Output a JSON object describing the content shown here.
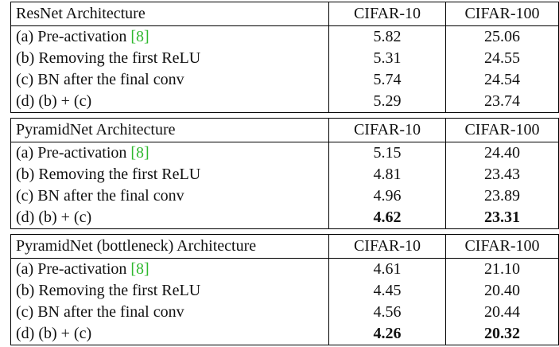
{
  "tables": [
    {
      "header": {
        "architecture": "ResNet Architecture",
        "cifar10": "CIFAR-10",
        "cifar100": "CIFAR-100"
      },
      "rows": [
        {
          "pre": "(a) Pre-activation ",
          "open": "[",
          "cite": "8",
          "close": "]",
          "cifar10": "5.82",
          "cifar100": "25.06"
        },
        {
          "label": "(b) Removing the first ReLU",
          "cifar10": "5.31",
          "cifar100": "24.55"
        },
        {
          "label": "(c) BN after the final conv",
          "cifar10": "5.74",
          "cifar100": "24.54"
        },
        {
          "label": "(d) (b) + (c)",
          "cifar10": "5.29",
          "cifar100": "23.74"
        }
      ]
    },
    {
      "header": {
        "architecture": "PyramidNet Architecture",
        "cifar10": "CIFAR-10",
        "cifar100": "CIFAR-100"
      },
      "rows": [
        {
          "pre": "(a) Pre-activation ",
          "open": "[",
          "cite": "8",
          "close": "]",
          "cifar10": "5.15",
          "cifar100": "24.40"
        },
        {
          "label": "(b) Removing the first ReLU",
          "cifar10": "4.81",
          "cifar100": "23.43"
        },
        {
          "label": "(c) BN after the final conv",
          "cifar10": "4.96",
          "cifar100": "23.89"
        },
        {
          "label": "(d) (b) + (c)",
          "cifar10": "4.62",
          "cifar100": "23.31",
          "bold": true
        }
      ]
    },
    {
      "header": {
        "architecture": "PyramidNet (bottleneck) Architecture",
        "cifar10": "CIFAR-10",
        "cifar100": "CIFAR-100"
      },
      "rows": [
        {
          "pre": "(a) Pre-activation ",
          "open": "[",
          "cite": "8",
          "close": "]",
          "cifar10": "4.61",
          "cifar100": "21.10"
        },
        {
          "label": "(b) Removing the first ReLU",
          "cifar10": "4.45",
          "cifar100": "20.40"
        },
        {
          "label": "(c) BN after the final conv",
          "cifar10": "4.56",
          "cifar100": "20.44"
        },
        {
          "label": "(d) (b) + (c)",
          "cifar10": "4.26",
          "cifar100": "20.32",
          "bold": true
        }
      ]
    }
  ],
  "colors": {
    "citation": "#2eb82e",
    "border": "#000000",
    "text": "#111111"
  }
}
